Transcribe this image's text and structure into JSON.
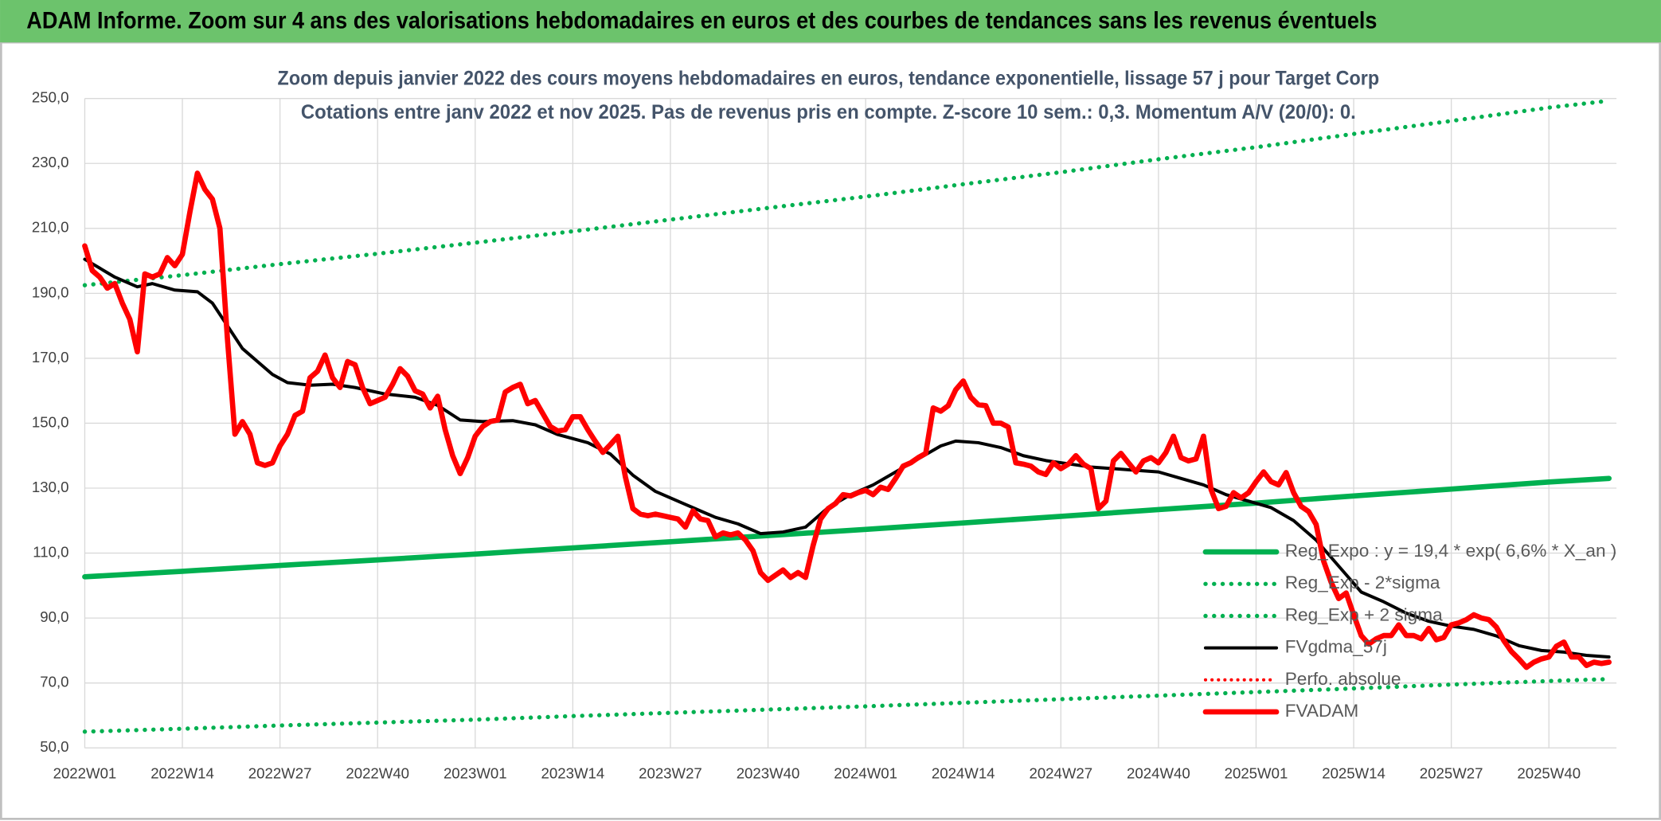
{
  "header": {
    "title": "ADAM Informe. Zoom sur 4 ans des valorisations hebdomadaires en euros et des courbes de tendances sans les revenus éventuels"
  },
  "chart_data": {
    "type": "line",
    "title": "Zoom depuis janvier 2022 des cours moyens hebdomadaires en euros, tendance exponentielle, lissage 57 j pour Target Corp",
    "subtitle": "Cotations entre janv 2022 et nov 2025. Pas de revenus pris en compte. Z-score 10 sem.: 0,3. Momentum A/V (20/0): 0.",
    "xlim": [
      0,
      204
    ],
    "xticks": [
      {
        "value": 0,
        "label": "2022W01"
      },
      {
        "value": 13,
        "label": "2022W14"
      },
      {
        "value": 26,
        "label": "2022W27"
      },
      {
        "value": 39,
        "label": "2022W40"
      },
      {
        "value": 52,
        "label": "2023W01"
      },
      {
        "value": 65,
        "label": "2023W14"
      },
      {
        "value": 78,
        "label": "2023W27"
      },
      {
        "value": 91,
        "label": "2023W40"
      },
      {
        "value": 104,
        "label": "2024W01"
      },
      {
        "value": 117,
        "label": "2024W14"
      },
      {
        "value": 130,
        "label": "2024W27"
      },
      {
        "value": 143,
        "label": "2024W40"
      },
      {
        "value": 156,
        "label": "2025W01"
      },
      {
        "value": 169,
        "label": "2025W14"
      },
      {
        "value": 182,
        "label": "2025W27"
      },
      {
        "value": 195,
        "label": "2025W40"
      }
    ],
    "ylim": [
      50,
      250
    ],
    "yticks": [
      {
        "value": 50,
        "label": "50,0"
      },
      {
        "value": 70,
        "label": "70,0"
      },
      {
        "value": 90,
        "label": "90,0"
      },
      {
        "value": 110,
        "label": "110,0"
      },
      {
        "value": 130,
        "label": "130,0"
      },
      {
        "value": 150,
        "label": "150,0"
      },
      {
        "value": 170,
        "label": "170,0"
      },
      {
        "value": 190,
        "label": "190,0"
      },
      {
        "value": 210,
        "label": "210,0"
      },
      {
        "value": 230,
        "label": "230,0"
      },
      {
        "value": 250,
        "label": "250,0"
      }
    ],
    "grid": true,
    "series": [
      {
        "name": "Reg_Expo : y = 19,4 * exp( 6,6% *  X_an )",
        "color": "#00b050",
        "style": "solid",
        "width": 5,
        "x": [
          0,
          13,
          26,
          39,
          52,
          65,
          78,
          91,
          104,
          117,
          130,
          143,
          156,
          169,
          182,
          195,
          203
        ],
        "values": [
          102.7,
          104.4,
          106.2,
          107.9,
          109.7,
          111.6,
          113.5,
          115.4,
          117.3,
          119.3,
          121.3,
          123.4,
          125.4,
          127.6,
          129.7,
          131.9,
          133.0
        ]
      },
      {
        "name": "Reg_Exp - 2*sigma",
        "color": "#00b050",
        "style": "dotted",
        "width": 4,
        "x": [
          0,
          13,
          26,
          39,
          52,
          65,
          78,
          91,
          104,
          117,
          130,
          143,
          156,
          169,
          182,
          195,
          203
        ],
        "values": [
          55.0,
          55.9,
          56.9,
          57.8,
          58.7,
          59.8,
          60.8,
          61.8,
          62.8,
          63.9,
          65.0,
          66.1,
          67.2,
          68.3,
          69.5,
          70.6,
          71.2
        ]
      },
      {
        "name": "Reg_Exp + 2 sigma",
        "color": "#00b050",
        "style": "dotted",
        "width": 4,
        "x": [
          0,
          13,
          26,
          39,
          52,
          65,
          78,
          91,
          104,
          117,
          130,
          143,
          156,
          169,
          182,
          195,
          203
        ],
        "values": [
          192.5,
          195.6,
          199.0,
          202.2,
          205.6,
          209.1,
          212.7,
          216.3,
          219.8,
          223.6,
          227.3,
          231.3,
          235.0,
          239.1,
          243.1,
          247.2,
          249.3
        ]
      },
      {
        "name": "FVgdma_57j",
        "color": "#000000",
        "style": "solid",
        "width": 3,
        "x": [
          0,
          4,
          7,
          9,
          12,
          15,
          17,
          19,
          21,
          23,
          25,
          27,
          30,
          33,
          36,
          40,
          44,
          47,
          50,
          53,
          57,
          60,
          63,
          67,
          70,
          73,
          76,
          80,
          84,
          87,
          90,
          93,
          96,
          99,
          102,
          105,
          108,
          111,
          114,
          116,
          119,
          122,
          125,
          128,
          131,
          134,
          137,
          140,
          143,
          146,
          149,
          152,
          155,
          158,
          161,
          164,
          167,
          170,
          173,
          176,
          179,
          182,
          185,
          188,
          191,
          194,
          197,
          200,
          203
        ],
        "values": [
          200.5,
          195,
          192,
          193,
          191,
          190.5,
          187,
          180,
          173,
          169,
          165,
          162.5,
          161.7,
          162,
          161,
          159,
          158,
          155.5,
          151,
          150.5,
          150.8,
          149.5,
          146.5,
          144,
          140.5,
          134,
          129,
          125,
          121,
          119,
          116,
          116.5,
          118,
          124,
          128,
          131,
          135,
          139,
          143,
          144.5,
          144,
          142.5,
          140,
          138.5,
          137.5,
          136.5,
          136,
          135.5,
          135,
          133,
          131,
          128,
          126,
          124,
          120,
          114,
          106,
          98,
          95,
          91.5,
          89,
          87.5,
          86.5,
          84.5,
          81.5,
          80,
          79.5,
          78.5,
          78
        ]
      },
      {
        "name": "Perfo. absolue",
        "color": "#ff0000",
        "style": "dotted",
        "width": 3
      },
      {
        "name": "FVADAM",
        "color": "#ff0000",
        "style": "solid",
        "width": 5,
        "x": [
          0,
          1,
          2,
          3,
          4,
          5,
          6,
          7,
          8,
          9,
          10,
          11,
          12,
          13,
          14,
          15,
          16,
          17,
          18,
          19,
          20,
          21,
          22,
          23,
          24,
          25,
          26,
          27,
          28,
          29,
          30,
          31,
          32,
          33,
          34,
          35,
          36,
          37,
          38,
          39,
          40,
          41,
          42,
          43,
          44,
          45,
          46,
          47,
          48,
          49,
          50,
          51,
          52,
          53,
          54,
          55,
          56,
          57,
          58,
          59,
          60,
          61,
          62,
          63,
          64,
          65,
          66,
          67,
          68,
          69,
          70,
          71,
          72,
          73,
          74,
          75,
          76,
          77,
          78,
          79,
          80,
          81,
          82,
          83,
          84,
          85,
          86,
          87,
          88,
          89,
          90,
          91,
          92,
          93,
          94,
          95,
          96,
          97,
          98,
          99,
          100,
          101,
          102,
          103,
          104,
          105,
          106,
          107,
          108,
          109,
          110,
          111,
          112,
          113,
          114,
          115,
          116,
          117,
          118,
          119,
          120,
          121,
          122,
          123,
          124,
          125,
          126,
          127,
          128,
          129,
          130,
          131,
          132,
          133,
          134,
          135,
          136,
          137,
          138,
          139,
          140,
          141,
          142,
          143,
          144,
          145,
          146,
          147,
          148,
          149,
          150,
          151,
          152,
          153,
          154,
          155,
          156,
          157,
          158,
          159,
          160,
          161,
          162,
          163,
          164,
          165,
          166,
          167,
          168,
          169,
          170,
          171,
          172,
          173,
          174,
          175,
          176,
          177,
          178,
          179,
          180,
          181,
          182,
          183,
          184,
          185,
          186,
          187,
          188,
          189,
          190,
          191,
          192,
          193,
          194,
          195,
          196,
          197,
          198,
          199,
          200,
          201,
          202,
          203
        ],
        "values": [
          204.6,
          197,
          195,
          191.6,
          193,
          187,
          182,
          172,
          196,
          195,
          196,
          201,
          198.5,
          202,
          215,
          227,
          222,
          219,
          210,
          176,
          146.6,
          150.5,
          146.6,
          137.8,
          137,
          137.8,
          143,
          146.6,
          152.4,
          153.7,
          164,
          166,
          171,
          164,
          161,
          169,
          168,
          161,
          156,
          157,
          158,
          162,
          166.8,
          164.5,
          160,
          159,
          154.7,
          158.3,
          148,
          140,
          134.5,
          139.4,
          146,
          149,
          150.5,
          151,
          159.6,
          161,
          162,
          156,
          157,
          153,
          149,
          147.6,
          148,
          152,
          152,
          148,
          144.4,
          141,
          143.4,
          146,
          133.5,
          123.7,
          122,
          121.5,
          122,
          121.5,
          121,
          120.5,
          118,
          123,
          120.5,
          120,
          115,
          116.2,
          115.6,
          116.2,
          114,
          110.7,
          104,
          101.6,
          103.2,
          104.8,
          102.5,
          104,
          102.5,
          112.3,
          120.5,
          123.7,
          125.3,
          128,
          127.6,
          128.6,
          129.3,
          128,
          130.3,
          129.6,
          133,
          136.8,
          137.8,
          139.4,
          140.7,
          154.7,
          153.7,
          155.4,
          160.3,
          163,
          158,
          155.7,
          155.4,
          150,
          150,
          148.8,
          137.8,
          137.4,
          136.8,
          135,
          134.2,
          137.8,
          136,
          137.4,
          140,
          137.4,
          136,
          123.7,
          126,
          138.4,
          140.7,
          137.8,
          135,
          138.4,
          139.4,
          137.8,
          141,
          146,
          139.4,
          138.4,
          139,
          146,
          129.6,
          123.7,
          124.4,
          128.6,
          127,
          128.6,
          132,
          135,
          132,
          131,
          134.8,
          128.6,
          124.4,
          122.8,
          118.8,
          107.5,
          101,
          96,
          97.7,
          91,
          84.6,
          82,
          83.6,
          84.6,
          84.6,
          87.9,
          84.6,
          84.6,
          83.6,
          86.8,
          83.3,
          84,
          87.9,
          88.5,
          89.5,
          91,
          90,
          89.5,
          87.2,
          83,
          79.7,
          77.4,
          74.8,
          76.4,
          77.4,
          78,
          81.3,
          82.6,
          78,
          78,
          75.4,
          76.4,
          76,
          76.4
        ]
      }
    ]
  }
}
